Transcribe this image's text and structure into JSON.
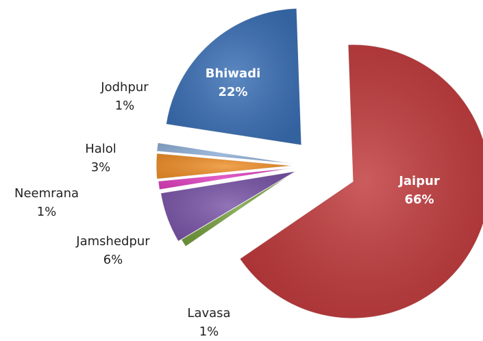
{
  "chart_data": {
    "type": "pie",
    "categories": [
      "Jaipur",
      "Lavasa",
      "Jamshedpur",
      "Neemrana",
      "Halol",
      "Jodhpur",
      "Bhiwadi"
    ],
    "values": [
      66,
      1,
      6,
      1,
      3,
      1,
      22
    ],
    "value_labels": [
      "66%",
      "1%",
      "6%",
      "1%",
      "3%",
      "1%",
      "22%"
    ],
    "colors": [
      "#c0393b",
      "#77a040",
      "#7a55a8",
      "#e040c0",
      "#f0902a",
      "#8fb0d8",
      "#3a6fb5"
    ]
  }
}
